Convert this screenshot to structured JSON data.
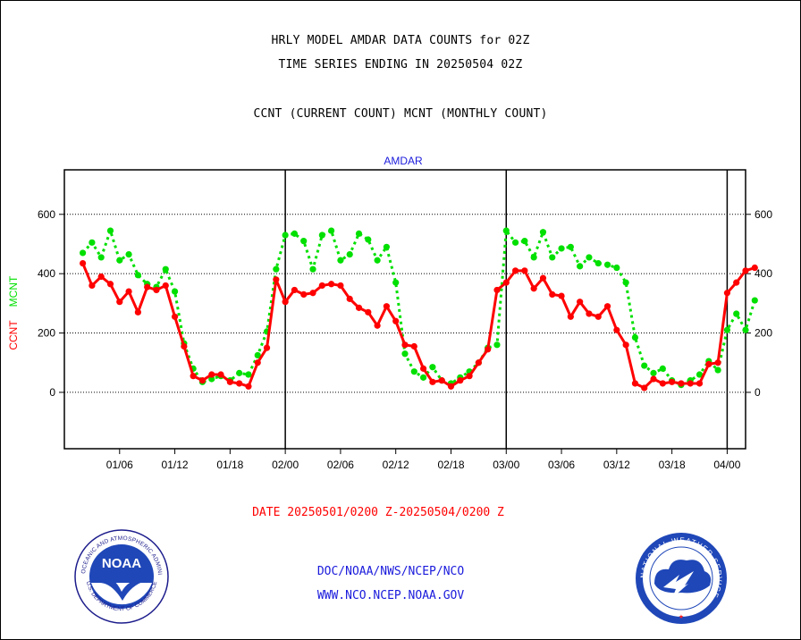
{
  "header": {
    "line1": "HRLY MODEL AMDAR DATA COUNTS for 02Z",
    "line2": "TIME SERIES ENDING IN 20250504 02Z",
    "line3": "CCNT (CURRENT COUNT) MCNT (MONTHLY COUNT)"
  },
  "footer": {
    "date_range": "DATE 20250501/0200 Z-20250504/0200 Z",
    "link1": "DOC/NOAA/NWS/NCEP/NCO",
    "link2": "WWW.NCO.NCEP.NOAA.GOV"
  },
  "logos": {
    "noaa_text": "NOAA",
    "noaa_ring_top": "NATIONAL OCEANIC AND ATMOSPHERIC ADMINISTRATION",
    "noaa_ring_bottom": "U.S. DEPARTMENT OF COMMERCE",
    "nws_ring": "NATIONAL WEATHER SERVICE"
  },
  "colors": {
    "ccnt": "#ff0000",
    "mcnt": "#00e000",
    "title": "#1a1adc",
    "grid": "#000000"
  },
  "chart_data": {
    "type": "line",
    "title": "AMDAR",
    "ylabel_left": [
      "CCNT",
      "MCNT"
    ],
    "ylim": [
      -190,
      750
    ],
    "yticks": [
      0,
      200,
      400,
      600
    ],
    "grid": "horizontal dotted",
    "x_tick_labels": [
      "01/06",
      "01/12",
      "01/18",
      "02/00",
      "02/06",
      "02/12",
      "02/18",
      "03/00",
      "03/06",
      "03/12",
      "03/18",
      "04/00"
    ],
    "x_tick_hours": [
      4,
      10,
      16,
      22,
      28,
      34,
      40,
      46,
      52,
      58,
      64,
      70
    ],
    "x_range_hours": [
      -2,
      72
    ],
    "day_boundaries_hours": [
      22,
      46,
      70
    ],
    "series": [
      {
        "name": "CCNT",
        "values": [
          435,
          360,
          390,
          365,
          305,
          340,
          270,
          355,
          345,
          360,
          255,
          155,
          55,
          40,
          60,
          60,
          35,
          30,
          20,
          100,
          150,
          380,
          305,
          345,
          330,
          335,
          360,
          365,
          360,
          315,
          285,
          270,
          225,
          290,
          240,
          160,
          155,
          80,
          35,
          40,
          20,
          40,
          55,
          100,
          145,
          345,
          370,
          410,
          410,
          350,
          385,
          330,
          325,
          255,
          305,
          265,
          255,
          290,
          210,
          160,
          30,
          15,
          45,
          30,
          35,
          30,
          30,
          30,
          95,
          100,
          335,
          370,
          410,
          420
        ]
      },
      {
        "name": "MCNT",
        "values": [
          470,
          505,
          455,
          545,
          445,
          465,
          395,
          365,
          355,
          415,
          340,
          165,
          80,
          35,
          45,
          55,
          40,
          65,
          60,
          125,
          205,
          415,
          530,
          535,
          510,
          415,
          530,
          545,
          445,
          465,
          535,
          515,
          445,
          490,
          370,
          130,
          70,
          50,
          85,
          40,
          30,
          50,
          70,
          100,
          150,
          160,
          545,
          505,
          510,
          455,
          540,
          455,
          485,
          490,
          425,
          455,
          435,
          430,
          420,
          370,
          185,
          90,
          65,
          80,
          40,
          25,
          40,
          60,
          105,
          75,
          210,
          265,
          210,
          310
        ]
      }
    ]
  }
}
